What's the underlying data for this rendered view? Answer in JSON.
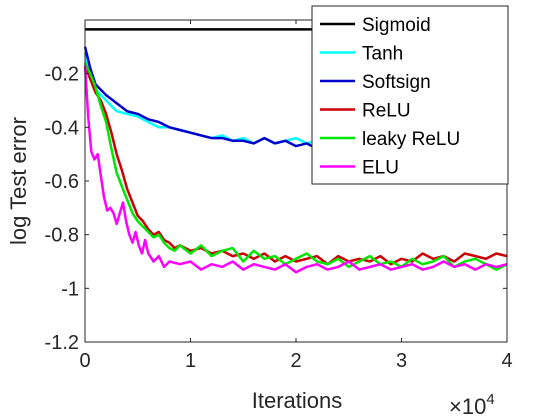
{
  "chart_data": {
    "type": "line",
    "title": "",
    "xlabel": "Iterations",
    "ylabel": "log Test error",
    "x_multiplier_label": "×10",
    "x_multiplier_exp": "4",
    "xlim": [
      0,
      40000
    ],
    "ylim": [
      -1.2,
      0
    ],
    "xticks": [
      0,
      10000,
      20000,
      30000,
      40000
    ],
    "xtick_labels": [
      "0",
      "1",
      "2",
      "3",
      "4"
    ],
    "yticks": [
      -1.2,
      -1,
      -0.8,
      -0.6,
      -0.4,
      -0.2
    ],
    "ytick_labels": [
      "-1.2",
      "-1",
      "-0.8",
      "-0.6",
      "-0.4",
      "-0.2"
    ],
    "grid": false,
    "legend_position": "top-right",
    "series": [
      {
        "name": "Sigmoid",
        "color": "#000000",
        "x": [
          0,
          40000
        ],
        "y": [
          -0.035,
          -0.035
        ]
      },
      {
        "name": "Tanh",
        "color": "#00ffff",
        "x": [
          0,
          500,
          1000,
          2000,
          3000,
          4000,
          5000,
          6000,
          7000,
          8000,
          9000,
          10000,
          11000,
          12000,
          13000,
          14000,
          15000,
          16000,
          17000,
          18000,
          19000,
          20000,
          21000,
          22000,
          23000,
          24000,
          25000,
          26000,
          27000,
          28000,
          29000,
          30000,
          31000,
          32000,
          33000,
          34000,
          35000,
          36000,
          37000,
          38000,
          39000,
          39500,
          40000
        ],
        "y": [
          -0.13,
          -0.2,
          -0.26,
          -0.3,
          -0.34,
          -0.35,
          -0.36,
          -0.38,
          -0.4,
          -0.4,
          -0.41,
          -0.42,
          -0.43,
          -0.44,
          -0.43,
          -0.45,
          -0.44,
          -0.46,
          -0.44,
          -0.46,
          -0.45,
          -0.44,
          -0.46,
          -0.45,
          -0.44,
          -0.46,
          -0.45,
          -0.47,
          -0.44,
          -0.46,
          -0.45,
          -0.44,
          -0.46,
          -0.43,
          -0.45,
          -0.44,
          -0.42,
          -0.43,
          -0.41,
          -0.42,
          -0.37,
          -0.43,
          -0.39
        ]
      },
      {
        "name": "Softsign",
        "color": "#0000cc",
        "x": [
          0,
          500,
          1000,
          2000,
          3000,
          4000,
          5000,
          6000,
          7000,
          8000,
          9000,
          10000,
          11000,
          12000,
          13000,
          14000,
          15000,
          16000,
          17000,
          18000,
          19000,
          20000,
          21000,
          22000,
          23000,
          24000,
          25000,
          26000,
          27000,
          28000,
          29000,
          30000,
          31000,
          32000,
          33000,
          34000,
          35000,
          36000,
          37000,
          38000,
          39000,
          40000
        ],
        "y": [
          -0.1,
          -0.18,
          -0.24,
          -0.28,
          -0.31,
          -0.34,
          -0.35,
          -0.37,
          -0.38,
          -0.4,
          -0.41,
          -0.42,
          -0.43,
          -0.44,
          -0.44,
          -0.45,
          -0.45,
          -0.46,
          -0.44,
          -0.46,
          -0.45,
          -0.47,
          -0.46,
          -0.48,
          -0.47,
          -0.47,
          -0.48,
          -0.48,
          -0.49,
          -0.49,
          -0.48,
          -0.49,
          -0.5,
          -0.49,
          -0.5,
          -0.49,
          -0.51,
          -0.5,
          -0.52,
          -0.51,
          -0.52,
          -0.51
        ]
      },
      {
        "name": "ReLU",
        "color": "#cc0000",
        "x": [
          0,
          500,
          1000,
          1500,
          2000,
          2500,
          3000,
          3500,
          4000,
          4500,
          5000,
          5500,
          6000,
          6500,
          7000,
          7500,
          8000,
          8500,
          9000,
          10000,
          11000,
          12000,
          13000,
          14000,
          15000,
          16000,
          17000,
          18000,
          19000,
          20000,
          21000,
          22000,
          23000,
          24000,
          25000,
          26000,
          27000,
          28000,
          29000,
          30000,
          31000,
          32000,
          33000,
          34000,
          35000,
          36000,
          37000,
          38000,
          39000,
          40000
        ],
        "y": [
          -0.17,
          -0.22,
          -0.27,
          -0.3,
          -0.35,
          -0.42,
          -0.5,
          -0.56,
          -0.63,
          -0.68,
          -0.73,
          -0.75,
          -0.78,
          -0.8,
          -0.79,
          -0.82,
          -0.83,
          -0.85,
          -0.84,
          -0.86,
          -0.85,
          -0.87,
          -0.86,
          -0.88,
          -0.87,
          -0.89,
          -0.87,
          -0.9,
          -0.88,
          -0.9,
          -0.89,
          -0.88,
          -0.91,
          -0.88,
          -0.9,
          -0.89,
          -0.9,
          -0.88,
          -0.91,
          -0.89,
          -0.9,
          -0.87,
          -0.89,
          -0.88,
          -0.9,
          -0.87,
          -0.88,
          -0.89,
          -0.87,
          -0.88
        ]
      },
      {
        "name": "leaky ReLU",
        "color": "#00e600",
        "x": [
          0,
          500,
          1000,
          1500,
          2000,
          2500,
          3000,
          3500,
          4000,
          4500,
          5000,
          5500,
          6000,
          6500,
          7000,
          7500,
          8000,
          8500,
          9000,
          10000,
          11000,
          12000,
          13000,
          14000,
          15000,
          16000,
          17000,
          18000,
          19000,
          20000,
          21000,
          22000,
          23000,
          24000,
          25000,
          26000,
          27000,
          28000,
          29000,
          30000,
          31000,
          32000,
          33000,
          34000,
          35000,
          36000,
          37000,
          38000,
          39000,
          40000
        ],
        "y": [
          -0.16,
          -0.2,
          -0.25,
          -0.32,
          -0.38,
          -0.48,
          -0.57,
          -0.62,
          -0.67,
          -0.72,
          -0.75,
          -0.77,
          -0.79,
          -0.81,
          -0.8,
          -0.83,
          -0.85,
          -0.86,
          -0.84,
          -0.87,
          -0.84,
          -0.88,
          -0.86,
          -0.85,
          -0.9,
          -0.86,
          -0.89,
          -0.88,
          -0.91,
          -0.89,
          -0.87,
          -0.9,
          -0.91,
          -0.89,
          -0.92,
          -0.9,
          -0.88,
          -0.91,
          -0.9,
          -0.92,
          -0.89,
          -0.91,
          -0.9,
          -0.88,
          -0.92,
          -0.9,
          -0.89,
          -0.91,
          -0.93,
          -0.91
        ]
      },
      {
        "name": "ELU",
        "color": "#ff00ff",
        "x": [
          0,
          300,
          600,
          900,
          1200,
          1500,
          1800,
          2100,
          2400,
          2700,
          3000,
          3300,
          3600,
          3900,
          4200,
          4500,
          4800,
          5100,
          5400,
          5700,
          6000,
          6500,
          7000,
          7500,
          8000,
          9000,
          10000,
          11000,
          12000,
          13000,
          14000,
          15000,
          16000,
          17000,
          18000,
          19000,
          20000,
          21000,
          22000,
          23000,
          24000,
          25000,
          26000,
          27000,
          28000,
          29000,
          30000,
          31000,
          32000,
          33000,
          34000,
          35000,
          36000,
          37000,
          38000,
          39000,
          40000
        ],
        "y": [
          -0.17,
          -0.36,
          -0.49,
          -0.52,
          -0.5,
          -0.58,
          -0.66,
          -0.71,
          -0.7,
          -0.72,
          -0.76,
          -0.72,
          -0.68,
          -0.75,
          -0.8,
          -0.83,
          -0.79,
          -0.84,
          -0.87,
          -0.82,
          -0.87,
          -0.9,
          -0.88,
          -0.92,
          -0.9,
          -0.91,
          -0.9,
          -0.93,
          -0.91,
          -0.92,
          -0.9,
          -0.93,
          -0.91,
          -0.92,
          -0.93,
          -0.91,
          -0.94,
          -0.92,
          -0.91,
          -0.93,
          -0.92,
          -0.9,
          -0.93,
          -0.92,
          -0.91,
          -0.93,
          -0.92,
          -0.91,
          -0.93,
          -0.92,
          -0.9,
          -0.92,
          -0.91,
          -0.93,
          -0.91,
          -0.92,
          -0.91
        ]
      }
    ]
  }
}
